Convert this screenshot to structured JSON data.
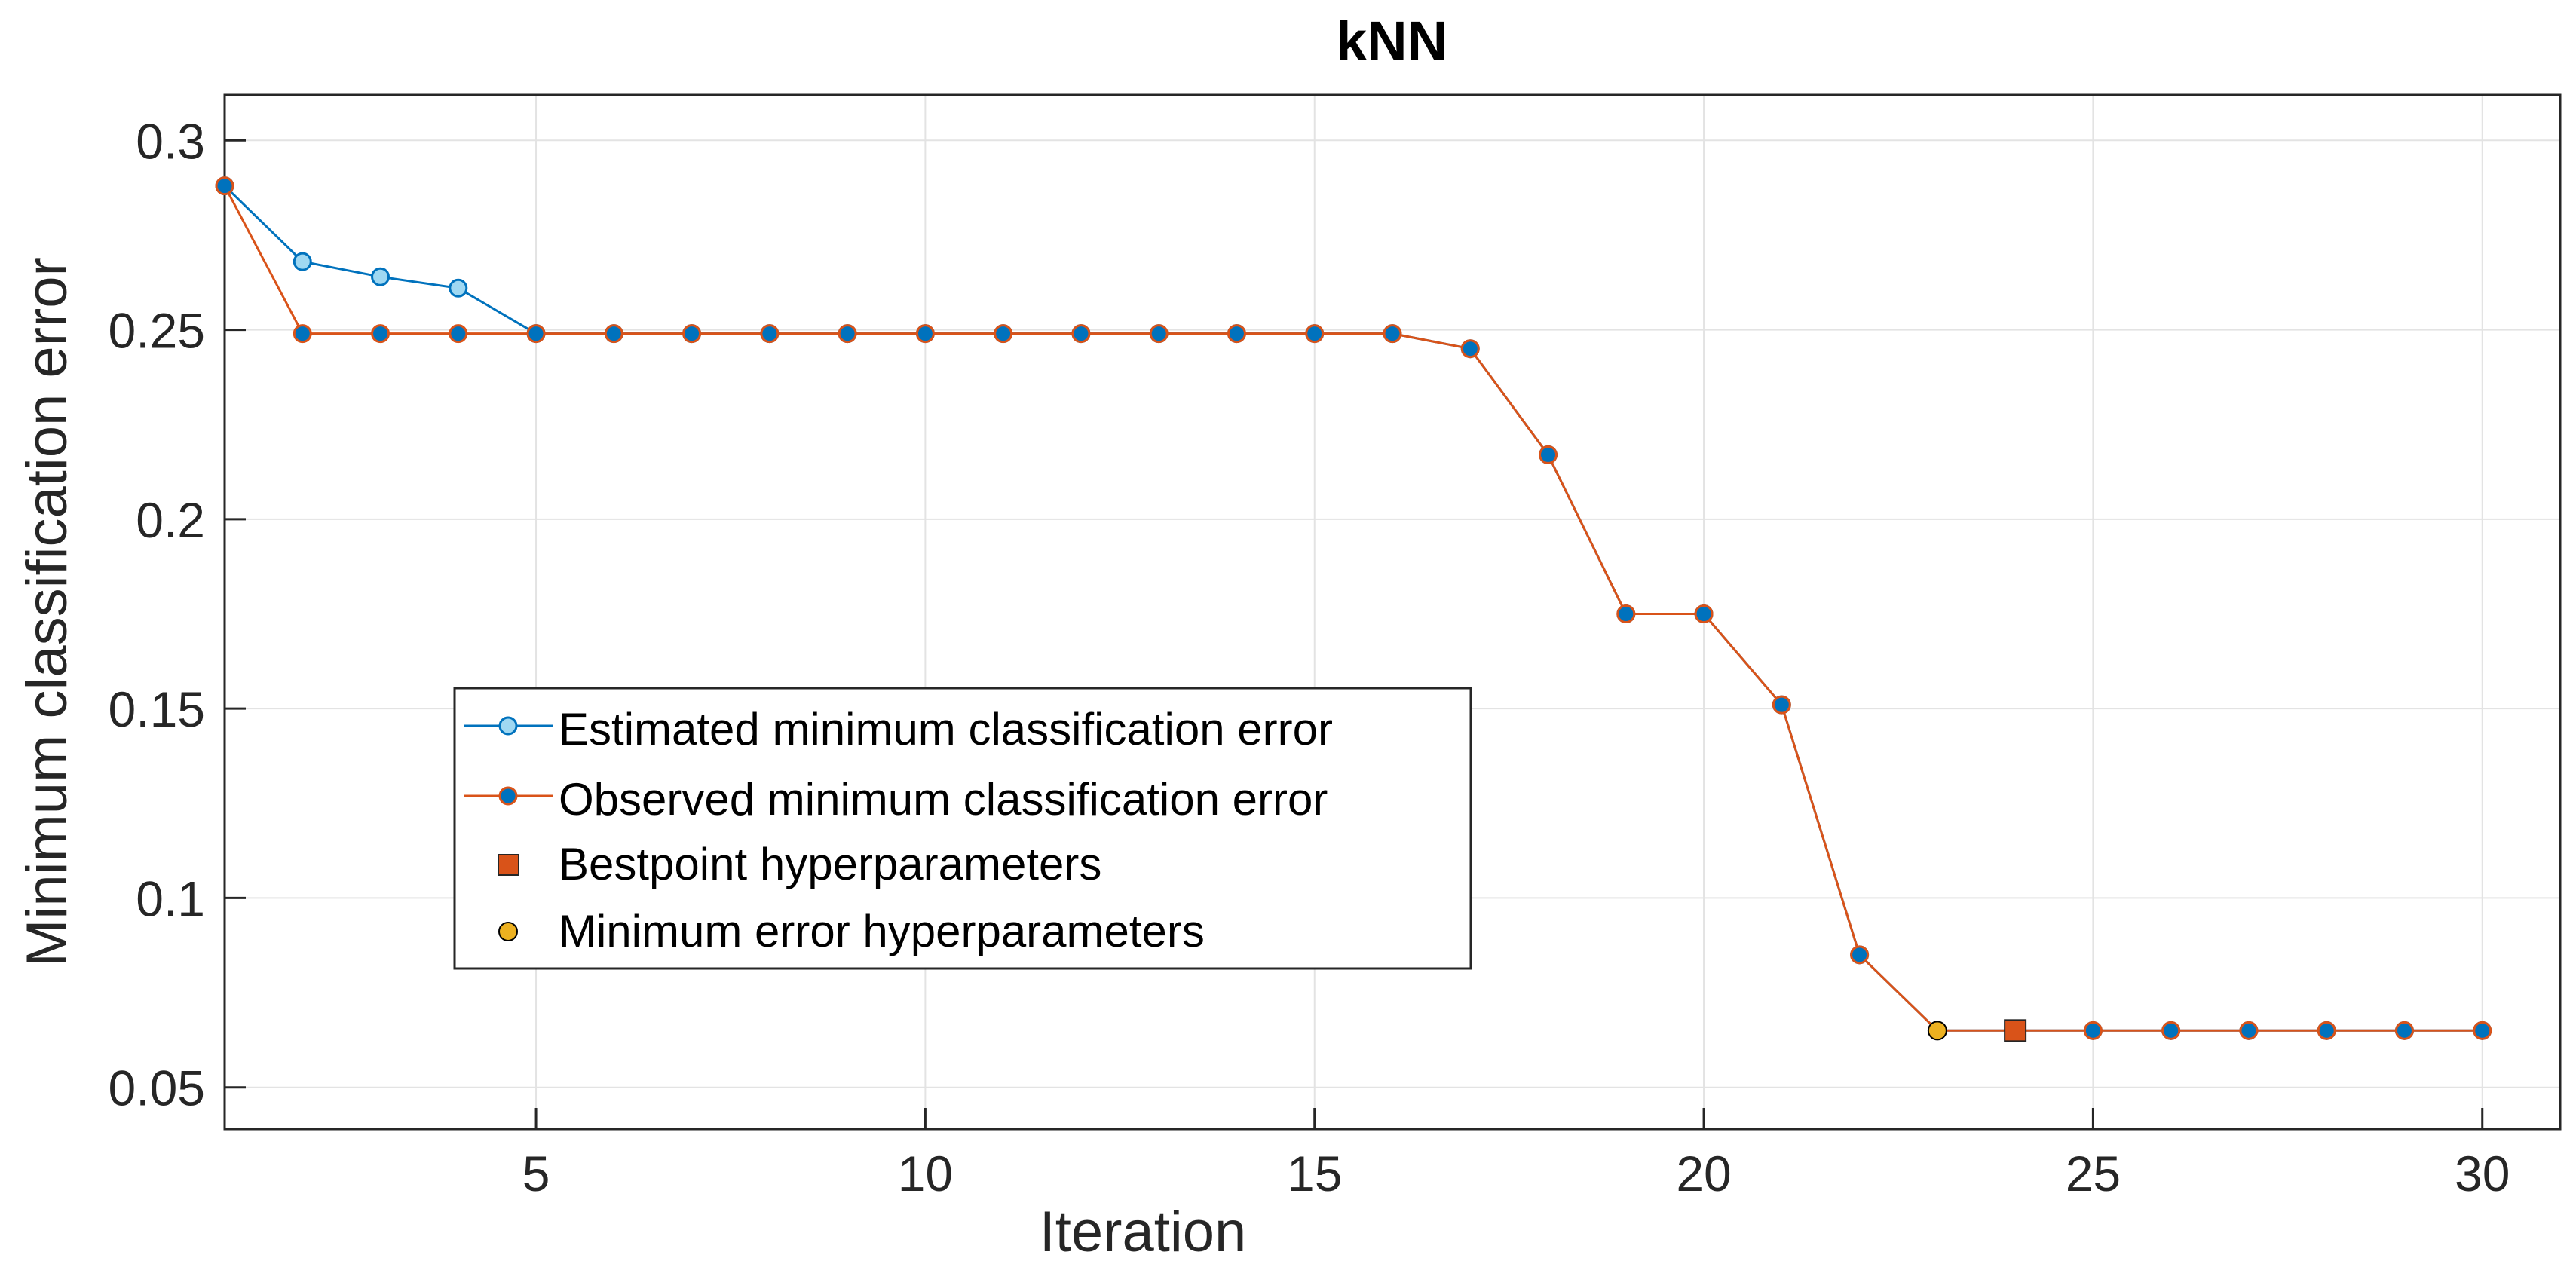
{
  "chart_data": {
    "type": "line",
    "title": "kNN",
    "xlabel": "Iteration",
    "ylabel": "Minimum classification error",
    "xlim": [
      1,
      31
    ],
    "ylim": [
      0.039,
      0.312
    ],
    "xticks": [
      5,
      10,
      15,
      20,
      25,
      30
    ],
    "yticks": [
      0.05,
      0.1,
      0.15,
      0.2,
      0.25,
      0.3
    ],
    "grid": true,
    "legend_position": "center-left",
    "series": [
      {
        "name": "Estimated minimum classification error",
        "color": "#0072BD",
        "marker_fill": "#9FD8F2",
        "x": [
          1,
          2,
          3,
          4,
          5,
          6,
          7,
          8,
          9,
          10,
          11,
          12,
          13,
          14,
          15,
          16,
          17,
          18,
          19,
          20,
          21,
          22,
          23,
          24,
          25,
          26,
          27,
          28,
          29,
          30
        ],
        "values": [
          0.288,
          0.268,
          0.264,
          0.261,
          0.249,
          0.249,
          0.249,
          0.249,
          0.249,
          0.249,
          0.249,
          0.249,
          0.249,
          0.249,
          0.249,
          0.249,
          0.245,
          0.217,
          0.175,
          0.175,
          0.151,
          0.085,
          0.065,
          0.065,
          0.065,
          0.065,
          0.065,
          0.065,
          0.065,
          0.065
        ]
      },
      {
        "name": "Observed minimum classification error",
        "color": "#D95319",
        "marker_fill": "#0072BD",
        "x": [
          1,
          2,
          3,
          4,
          5,
          6,
          7,
          8,
          9,
          10,
          11,
          12,
          13,
          14,
          15,
          16,
          17,
          18,
          19,
          20,
          21,
          22,
          23,
          24,
          25,
          26,
          27,
          28,
          29,
          30
        ],
        "values": [
          0.288,
          0.249,
          0.249,
          0.249,
          0.249,
          0.249,
          0.249,
          0.249,
          0.249,
          0.249,
          0.249,
          0.249,
          0.249,
          0.249,
          0.249,
          0.249,
          0.245,
          0.217,
          0.175,
          0.175,
          0.151,
          0.085,
          0.065,
          0.065,
          0.065,
          0.065,
          0.065,
          0.065,
          0.065,
          0.065
        ]
      }
    ],
    "points": [
      {
        "name": "Bestpoint hyperparameters",
        "x": 24,
        "y": 0.065,
        "marker": "square",
        "color": "#D95319"
      },
      {
        "name": "Minimum error hyperparameters",
        "x": 23,
        "y": 0.065,
        "marker": "circle",
        "color": "#EDB120"
      }
    ]
  }
}
